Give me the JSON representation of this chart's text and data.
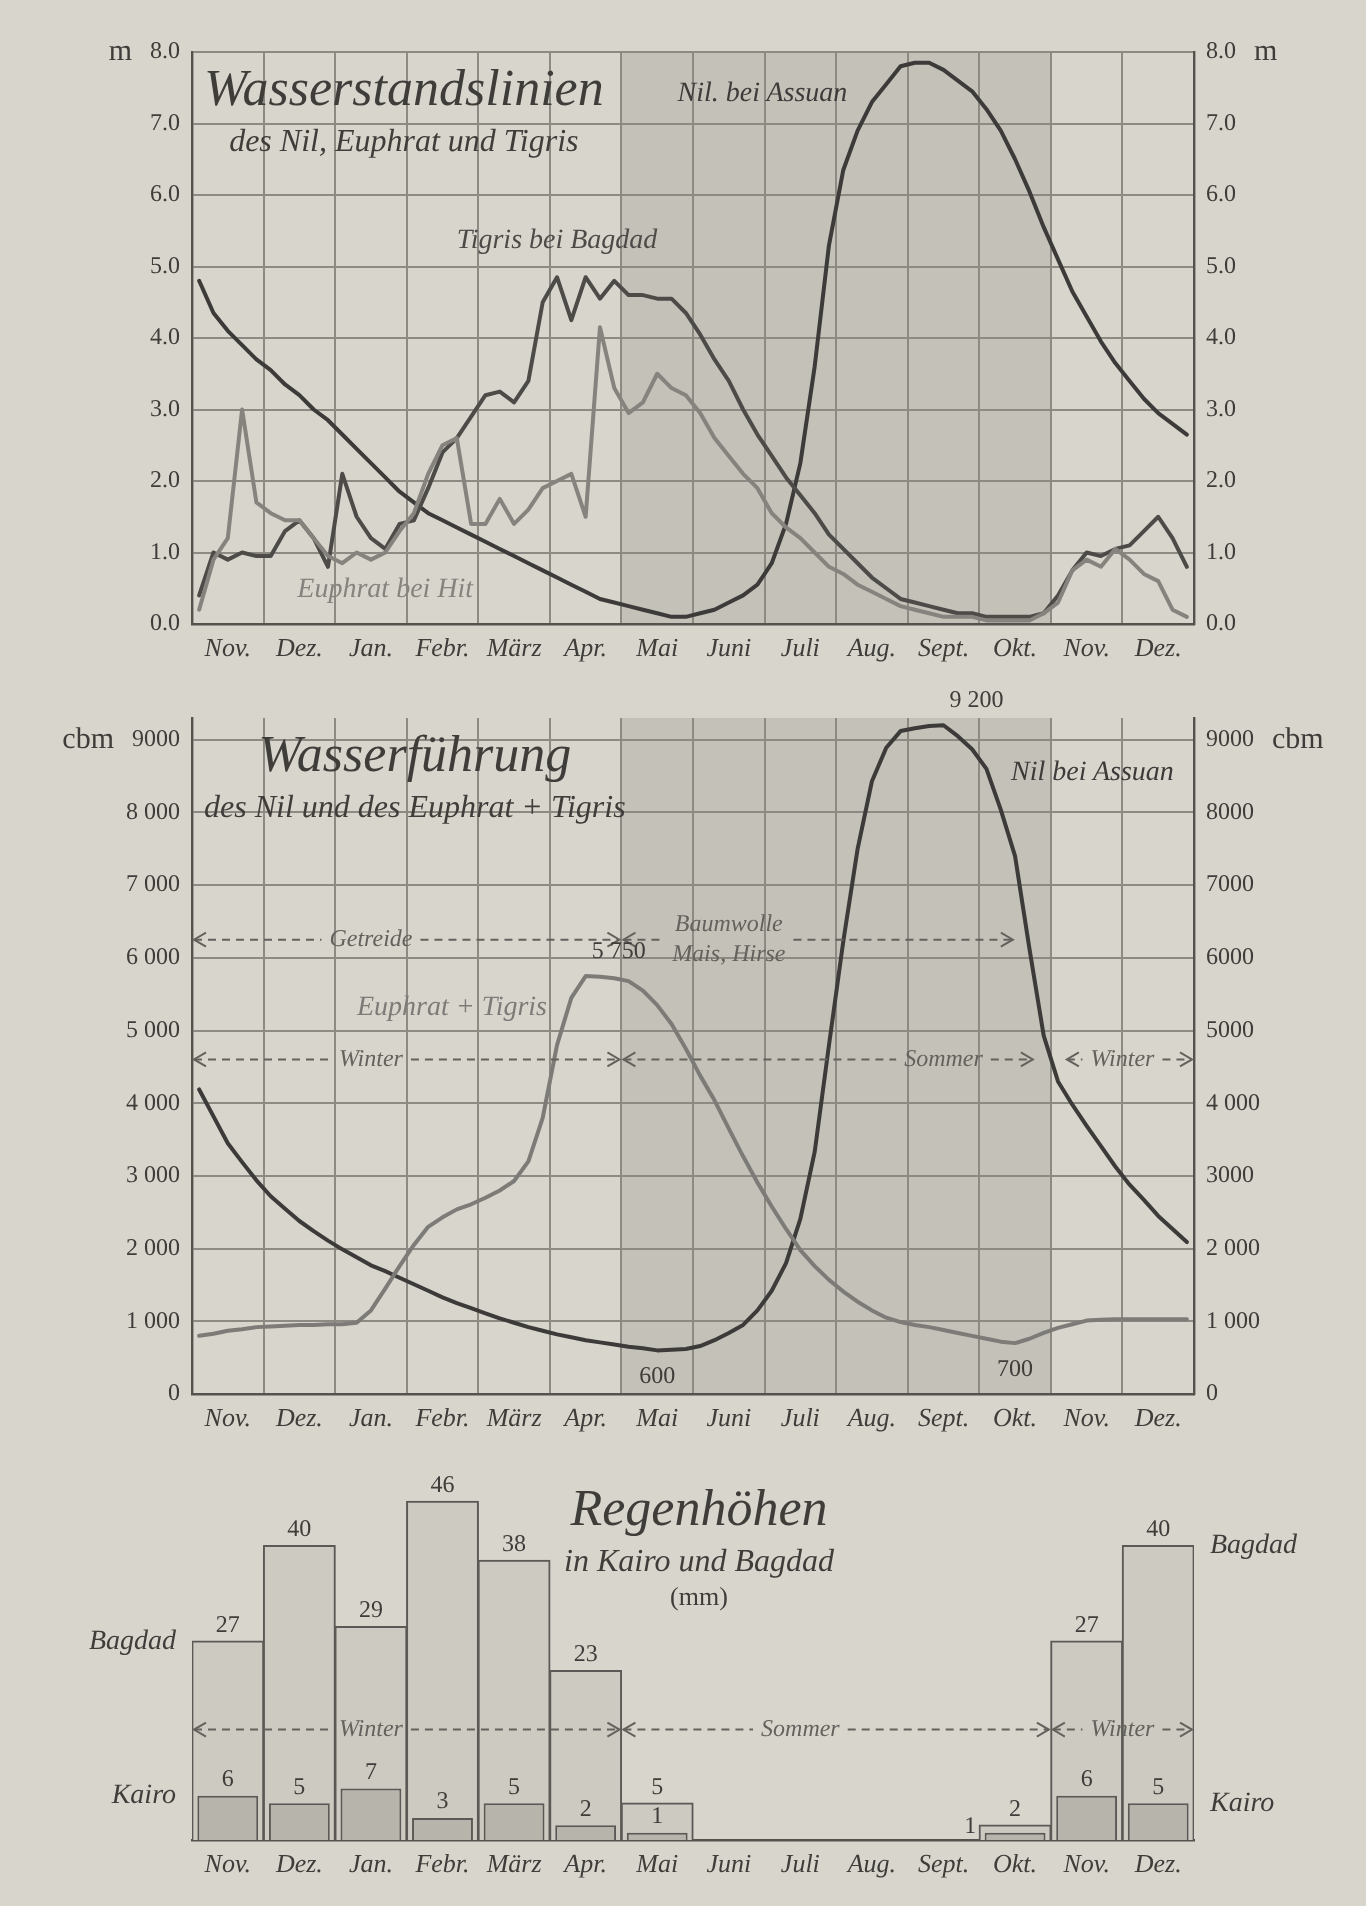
{
  "chart_data": [
    {
      "type": "line",
      "title": "Wasserstandslinien",
      "subtitle": "des Nil, Euphrat und Tigris",
      "ylabel": "m",
      "y2label": "m",
      "categories": [
        null,
        null,
        "Nov.",
        null,
        null,
        null,
        null,
        "Dez.",
        null,
        null,
        null,
        null,
        "Jan.",
        null,
        null,
        null,
        null,
        "Febr.",
        null,
        null,
        null,
        null,
        "März",
        null,
        null,
        null,
        null,
        "Apr.",
        null,
        null,
        null,
        null,
        "Mai",
        null,
        null,
        null,
        null,
        "Juni",
        null,
        null,
        null,
        null,
        "Juli",
        null,
        null,
        null,
        null,
        "Aug.",
        null,
        null,
        null,
        null,
        "Sept.",
        null,
        null,
        null,
        null,
        "Okt.",
        null,
        null,
        null,
        null,
        "Nov.",
        null,
        null,
        null,
        null,
        "Dez.",
        null,
        null
      ],
      "ylim": [
        0,
        8
      ],
      "yticks": [
        {
          "value": 0,
          "label": "0.0"
        },
        {
          "value": 1,
          "label": "1.0"
        },
        {
          "value": 2,
          "label": "2.0"
        },
        {
          "value": 3,
          "label": "3.0"
        },
        {
          "value": 4,
          "label": "4.0"
        },
        {
          "value": 5,
          "label": "5.0"
        },
        {
          "value": 6,
          "label": "6.0"
        },
        {
          "value": 7,
          "label": "7.0"
        },
        {
          "value": 8,
          "label": "8.0"
        }
      ],
      "y2lim": [
        0,
        8
      ],
      "y2ticks": [
        {
          "value": 0,
          "label": "0.0"
        },
        {
          "value": 1,
          "label": "1.0"
        },
        {
          "value": 2,
          "label": "2.0"
        },
        {
          "value": 3,
          "label": "3.0"
        },
        {
          "value": 4,
          "label": "4.0"
        },
        {
          "value": 5,
          "label": "5.0"
        },
        {
          "value": 6,
          "label": "6.0"
        },
        {
          "value": 7,
          "label": "7.0"
        },
        {
          "value": 8,
          "label": "8.0"
        }
      ],
      "grid": true,
      "series": [
        {
          "name": "Nil. bei Assuan",
          "color": "#3c3b39",
          "values": [
            4.8,
            4.35,
            4.1,
            3.9,
            3.7,
            3.55,
            3.35,
            3.2,
            3.0,
            2.85,
            2.65,
            2.45,
            2.25,
            2.05,
            1.85,
            1.7,
            1.55,
            1.45,
            1.35,
            1.25,
            1.15,
            1.05,
            0.95,
            0.85,
            0.75,
            0.65,
            0.55,
            0.45,
            0.35,
            0.3,
            0.25,
            0.2,
            0.15,
            0.1,
            0.1,
            0.15,
            0.2,
            0.3,
            0.4,
            0.55,
            0.85,
            1.4,
            2.25,
            3.6,
            5.3,
            6.35,
            6.9,
            7.3,
            7.55,
            7.8,
            7.85,
            7.85,
            7.75,
            7.6,
            7.45,
            7.2,
            6.9,
            6.5,
            6.05,
            5.55,
            5.1,
            4.65,
            4.3,
            3.95,
            3.65,
            3.4,
            3.15,
            2.95,
            2.8,
            2.65
          ]
        },
        {
          "name": "Tigris bei Bagdad",
          "color": "#4d4b48",
          "values": [
            0.4,
            1.0,
            0.9,
            1.0,
            0.95,
            0.95,
            1.3,
            1.45,
            1.2,
            0.8,
            2.1,
            1.5,
            1.2,
            1.05,
            1.4,
            1.45,
            1.9,
            2.4,
            2.6,
            2.9,
            3.2,
            3.25,
            3.1,
            3.4,
            4.5,
            4.85,
            4.25,
            4.85,
            4.55,
            4.8,
            4.6,
            4.6,
            4.55,
            4.55,
            4.35,
            4.05,
            3.7,
            3.4,
            3.0,
            2.65,
            2.35,
            2.05,
            1.8,
            1.55,
            1.25,
            1.05,
            0.85,
            0.65,
            0.5,
            0.35,
            0.3,
            0.25,
            0.2,
            0.15,
            0.15,
            0.1,
            0.1,
            0.1,
            0.1,
            0.15,
            0.4,
            0.75,
            1.0,
            0.95,
            1.05,
            1.1,
            1.3,
            1.5,
            1.2,
            0.8
          ]
        },
        {
          "name": "Euphrat bei Hit",
          "color": "#86837e",
          "values": [
            0.2,
            0.9,
            1.2,
            3.0,
            1.7,
            1.55,
            1.45,
            1.45,
            1.2,
            0.95,
            0.85,
            1.0,
            0.9,
            1.0,
            1.3,
            1.55,
            2.1,
            2.5,
            2.6,
            1.4,
            1.4,
            1.75,
            1.4,
            1.6,
            1.9,
            2.0,
            2.1,
            1.5,
            4.15,
            3.3,
            2.95,
            3.1,
            3.5,
            3.3,
            3.2,
            2.95,
            2.6,
            2.35,
            2.1,
            1.9,
            1.55,
            1.35,
            1.2,
            1.0,
            0.8,
            0.7,
            0.55,
            0.45,
            0.35,
            0.25,
            0.2,
            0.15,
            0.1,
            0.1,
            0.1,
            0.05,
            0.05,
            0.05,
            0.05,
            0.15,
            0.3,
            0.75,
            0.9,
            0.8,
            1.05,
            0.9,
            0.7,
            0.6,
            0.2,
            0.1
          ]
        }
      ]
    },
    {
      "type": "line",
      "title": "Wasserführung",
      "subtitle": "des Nil und des Euphrat + Tigris",
      "ylabel": "cbm",
      "y2label": "cbm",
      "categories": [
        null,
        null,
        "Nov.",
        null,
        null,
        null,
        null,
        "Dez.",
        null,
        null,
        null,
        null,
        "Jan.",
        null,
        null,
        null,
        null,
        "Febr.",
        null,
        null,
        null,
        null,
        "März",
        null,
        null,
        null,
        null,
        "Apr.",
        null,
        null,
        null,
        null,
        "Mai",
        null,
        null,
        null,
        null,
        "Juni",
        null,
        null,
        null,
        null,
        "Juli",
        null,
        null,
        null,
        null,
        "Aug.",
        null,
        null,
        null,
        null,
        "Sept.",
        null,
        null,
        null,
        null,
        "Okt.",
        null,
        null,
        null,
        null,
        "Nov.",
        null,
        null,
        null,
        null,
        "Dez.",
        null,
        null
      ],
      "ylim": [
        0,
        9300
      ],
      "yticks": [
        0,
        {
          "value": 1000,
          "label": "1 000"
        },
        {
          "value": 2000,
          "label": "2 000"
        },
        {
          "value": 3000,
          "label": "3 000"
        },
        {
          "value": 4000,
          "label": "4 000"
        },
        {
          "value": 5000,
          "label": "5 000"
        },
        {
          "value": 6000,
          "label": "6 000"
        },
        {
          "value": 7000,
          "label": "7 000"
        },
        {
          "value": 8000,
          "label": "8 000"
        },
        9000
      ],
      "y2lim": [
        0,
        9300
      ],
      "y2ticks": [
        0,
        {
          "value": 1000,
          "label": "1 000"
        },
        {
          "value": 2000,
          "label": "2 000"
        },
        3000,
        {
          "value": 4000,
          "label": "4 000"
        },
        5000,
        6000,
        7000,
        8000,
        9000
      ],
      "grid": true,
      "annotations": [
        {
          "text": "9 200",
          "x": "Sept.",
          "y": 9200
        },
        {
          "text": "5 750",
          "x": "Apr.",
          "y": 5750
        },
        {
          "text": "600",
          "x": "Mai",
          "y": 600
        },
        {
          "text": "700",
          "x": "Okt.",
          "y": 700
        },
        "Winter",
        "Sommer",
        "Winter",
        "Getreide",
        "Baumwolle Mais, Hirse"
      ],
      "series": [
        {
          "name": "Nil bei Assuan",
          "color": "#3c3b39",
          "values": [
            4190,
            3820,
            3450,
            3190,
            2940,
            2720,
            2550,
            2380,
            2240,
            2110,
            1990,
            1880,
            1770,
            1690,
            1600,
            1510,
            1420,
            1330,
            1250,
            1180,
            1110,
            1040,
            980,
            920,
            870,
            820,
            780,
            740,
            710,
            680,
            650,
            630,
            600,
            610,
            620,
            660,
            740,
            840,
            950,
            1150,
            1420,
            1800,
            2410,
            3330,
            4800,
            6230,
            7500,
            8430,
            8890,
            9120,
            9160,
            9190,
            9200,
            9050,
            8870,
            8600,
            8040,
            7400,
            6130,
            4930,
            4300,
            3980,
            3690,
            3410,
            3130,
            2880,
            2670,
            2450,
            2270,
            2090
          ]
        },
        {
          "name": "Euphrat + Tigris",
          "color": "#7d7b77",
          "values": [
            800,
            830,
            870,
            890,
            920,
            930,
            940,
            950,
            950,
            960,
            960,
            980,
            1150,
            1450,
            1760,
            2050,
            2300,
            2430,
            2540,
            2610,
            2700,
            2800,
            2930,
            3200,
            3800,
            4800,
            5450,
            5750,
            5740,
            5720,
            5680,
            5550,
            5350,
            5090,
            4750,
            4380,
            4040,
            3650,
            3270,
            2910,
            2580,
            2270,
            1980,
            1760,
            1570,
            1410,
            1270,
            1150,
            1050,
            990,
            950,
            920,
            880,
            840,
            800,
            760,
            720,
            700,
            760,
            840,
            910,
            960,
            1010,
            1020,
            1030,
            1030,
            1030,
            1030,
            1030,
            1030
          ]
        }
      ]
    },
    {
      "type": "bar",
      "title": "Regenhöhen",
      "subtitle": "in Kairo und Bagdad",
      "ylabel": "(mm)",
      "tick_labels": "x",
      "grid": false,
      "data_labels": true,
      "categories": [
        "Nov.",
        "Dez.",
        "Jan.",
        "Febr.",
        "März",
        "Apr.",
        "Mai",
        "Juni",
        "Juli",
        "Aug.",
        "Sept.",
        "Okt.",
        "Nov.",
        "Dez."
      ],
      "annotations": [
        "Winter",
        "Sommer",
        "Winter"
      ],
      "series": [
        {
          "name": "Bagdad",
          "color": "#cdcac2",
          "values": [
            27,
            40,
            29,
            46,
            38,
            23,
            5,
            null,
            null,
            null,
            null,
            2,
            27,
            40
          ]
        },
        {
          "name": "Kairo",
          "color": "#b7b4ac",
          "values": [
            6,
            5,
            7,
            3,
            5,
            2,
            1,
            null,
            null,
            null,
            null,
            1,
            6,
            5
          ]
        }
      ]
    }
  ]
}
